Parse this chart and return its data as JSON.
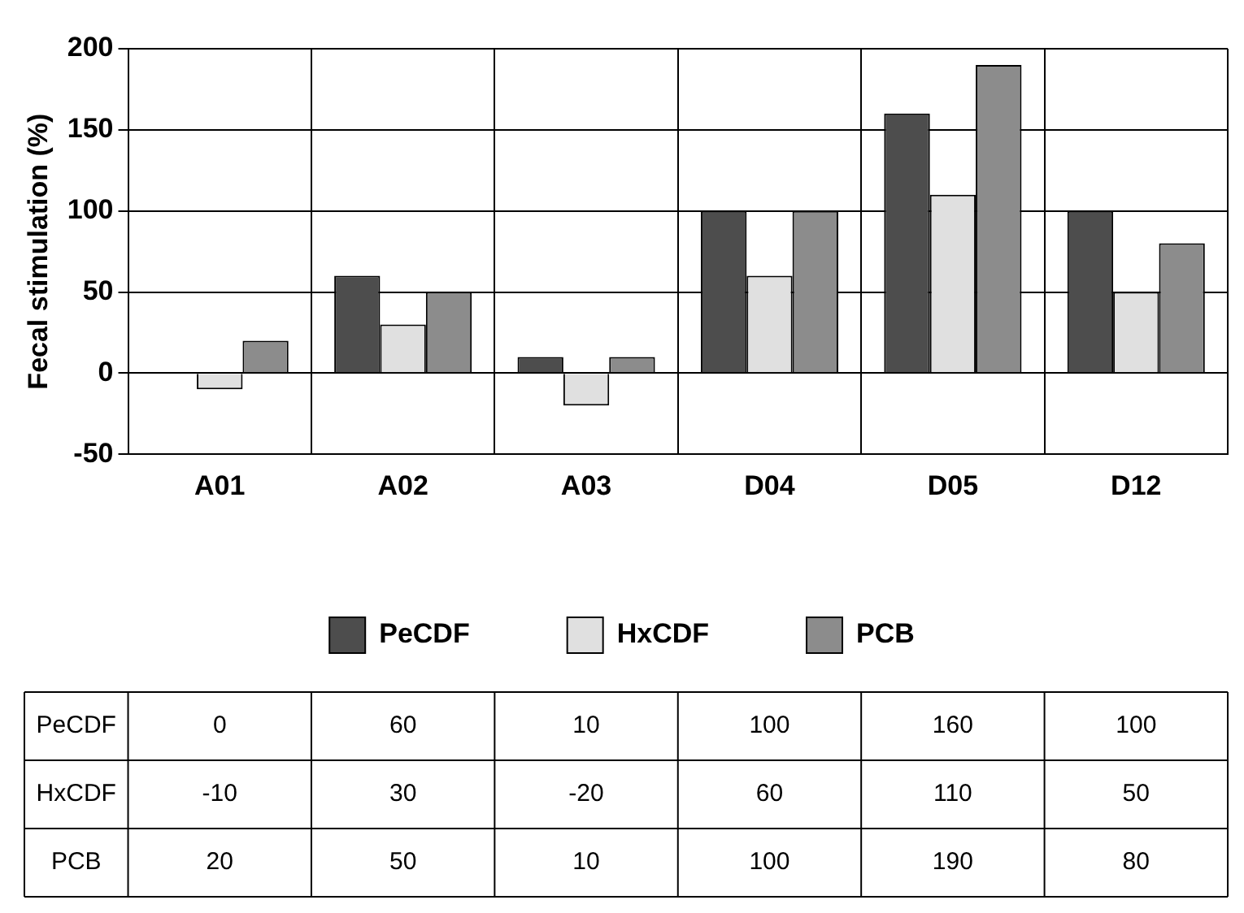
{
  "chart_data": {
    "type": "bar",
    "ylabel": "Fecal stimulation (%)",
    "categories": [
      "A01",
      "A02",
      "A03",
      "D04",
      "D05",
      "D12"
    ],
    "series": [
      {
        "name": "PeCDF",
        "color": "#4d4d4d",
        "values": [
          0,
          60,
          10,
          100,
          160,
          100
        ]
      },
      {
        "name": "HxCDF",
        "color": "#e0e0e0",
        "values": [
          -10,
          30,
          -20,
          60,
          110,
          50
        ]
      },
      {
        "name": "PCB",
        "color": "#8c8c8c",
        "values": [
          20,
          50,
          10,
          100,
          190,
          80
        ]
      }
    ],
    "ylim": [
      -50,
      200
    ],
    "yticks": [
      -50,
      0,
      50,
      100,
      150,
      200
    ],
    "grid": true,
    "legend": "bottom",
    "data_labels": true
  }
}
